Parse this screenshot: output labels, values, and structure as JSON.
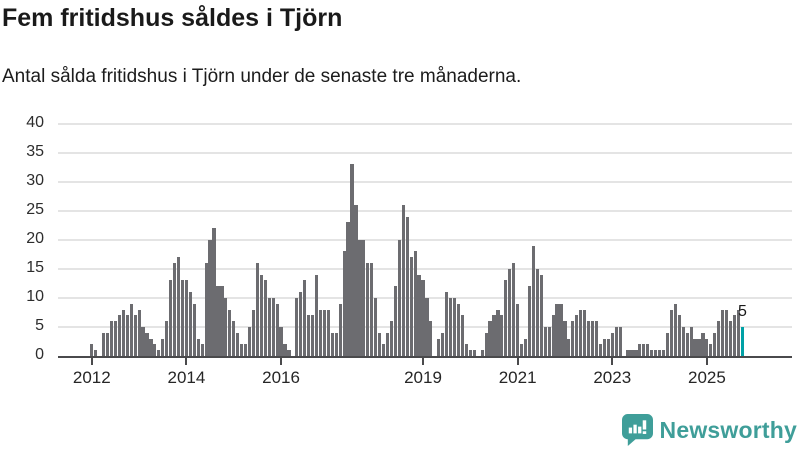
{
  "header": {
    "title": "Fem fritidshus såldes i Tjörn",
    "subtitle": "Antal sålda fritidshus i Tjörn under de senaste tre månaderna."
  },
  "chart_data": {
    "type": "bar",
    "title": "Fem fritidshus såldes i Tjörn",
    "subtitle": "Antal sålda fritidshus i Tjörn under de senaste tre månaderna.",
    "frequency": "monthly",
    "period_start": "2012-01",
    "period_end": "2025-10",
    "values": [
      2,
      1,
      0,
      4,
      4,
      6,
      6,
      7,
      8,
      7,
      9,
      7,
      8,
      5,
      4,
      3,
      2,
      1,
      3,
      6,
      13,
      16,
      17,
      13,
      13,
      11,
      9,
      3,
      2,
      16,
      20,
      22,
      12,
      12,
      10,
      8,
      6,
      4,
      2,
      2,
      5,
      8,
      16,
      14,
      13,
      10,
      10,
      9,
      5,
      2,
      1,
      0,
      10,
      11,
      13,
      7,
      7,
      14,
      8,
      8,
      8,
      4,
      4,
      9,
      18,
      23,
      33,
      26,
      20,
      20,
      16,
      16,
      10,
      4,
      2,
      4,
      6,
      12,
      20,
      26,
      24,
      17,
      18,
      14,
      13,
      10,
      6,
      0,
      3,
      4,
      11,
      10,
      10,
      9,
      7,
      2,
      1,
      1,
      0,
      1,
      4,
      6,
      7,
      8,
      7,
      13,
      15,
      16,
      9,
      2,
      3,
      12,
      19,
      15,
      14,
      5,
      5,
      7,
      9,
      9,
      6,
      3,
      6,
      7,
      8,
      8,
      6,
      6,
      6,
      2,
      3,
      3,
      4,
      5,
      5,
      0,
      1,
      1,
      1,
      2,
      2,
      2,
      1,
      1,
      1,
      1,
      4,
      8,
      9,
      7,
      5,
      4,
      5,
      3,
      3,
      4,
      3,
      2,
      4,
      6,
      8,
      8,
      6,
      7,
      8,
      5
    ],
    "ylim": [
      0,
      40
    ],
    "y_ticks": [
      0,
      5,
      10,
      15,
      20,
      25,
      30,
      35,
      40
    ],
    "x_ticks": [
      {
        "label": "2012",
        "month_index": 0
      },
      {
        "label": "2014",
        "month_index": 24
      },
      {
        "label": "2016",
        "month_index": 48
      },
      {
        "label": "2019",
        "month_index": 84
      },
      {
        "label": "2021",
        "month_index": 108
      },
      {
        "label": "2023",
        "month_index": 132
      },
      {
        "label": "2025",
        "month_index": 156
      }
    ],
    "grid": true,
    "legend": "none",
    "bar_color": "#6c6c70",
    "highlight": {
      "index": 165,
      "value": 5,
      "label": "5",
      "color": "#00a1a6"
    }
  },
  "footer": {
    "brand": "Newsworthy",
    "brand_color": "#3f9e99",
    "logo_icon": "speech-bubble-bar-chart-exclamation-icon"
  }
}
